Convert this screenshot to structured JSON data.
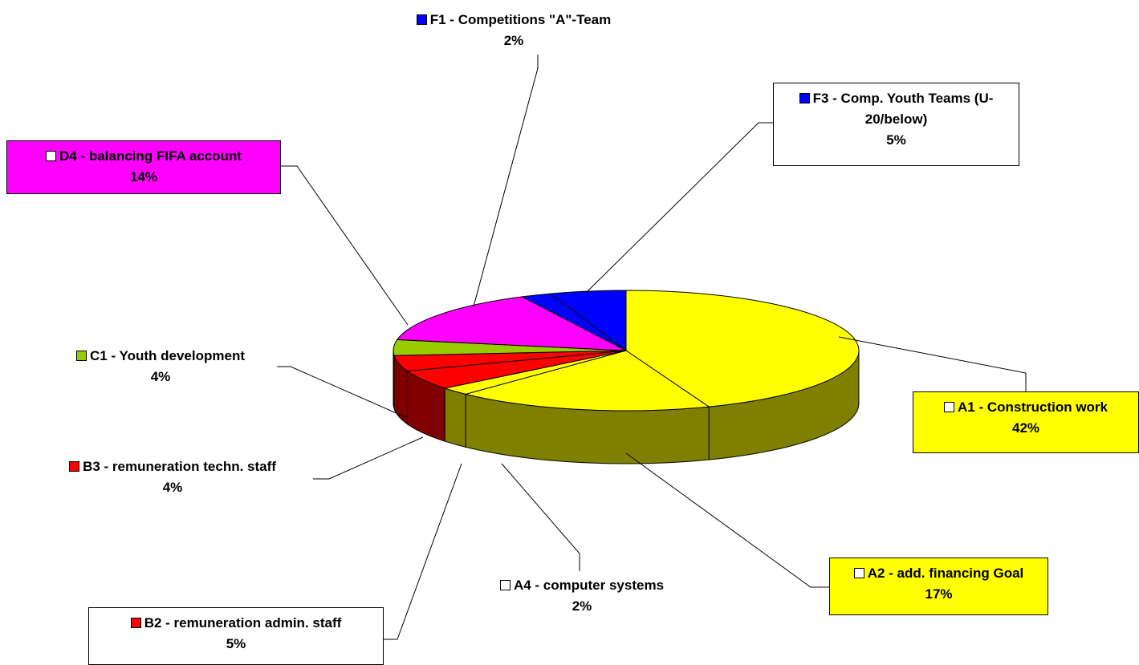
{
  "chart_data": {
    "type": "pie3d",
    "categories": [
      "A1 - Construction work",
      "A2 - add. financing Goal",
      "A4 - computer systems",
      "B2 - remuneration admin. staff",
      "B3 - remuneration techn. staff",
      "C1 - Youth development",
      "D4 - balancing FIFA account",
      "F1 - Competitions \"A\"-Team",
      "F3 - Comp. Youth Teams (U-20/below)"
    ],
    "values": [
      42,
      17,
      2,
      5,
      4,
      4,
      14,
      2,
      5
    ],
    "value_labels": [
      "42%",
      "17%",
      "2%",
      "5%",
      "4%",
      "4%",
      "14%",
      "2%",
      "5%"
    ],
    "colors": [
      "#ffff00",
      "#ffff00",
      "#ffff00",
      "#ff0000",
      "#ff0000",
      "#99cc00",
      "#ff00ff",
      "#0000ff",
      "#0000ff"
    ],
    "legend_key_colors": [
      "#ffffff",
      "#ffffff",
      "#ffffff",
      "#ff0000",
      "#ff0000",
      "#99cc00",
      "#ffffff",
      "#0000ff",
      "#0000ff"
    ],
    "label_fills": [
      "#ffff00",
      "#ffff00",
      "none",
      "#ffffff",
      "none",
      "none",
      "#ff00ff",
      "none",
      "#ffffff"
    ]
  }
}
